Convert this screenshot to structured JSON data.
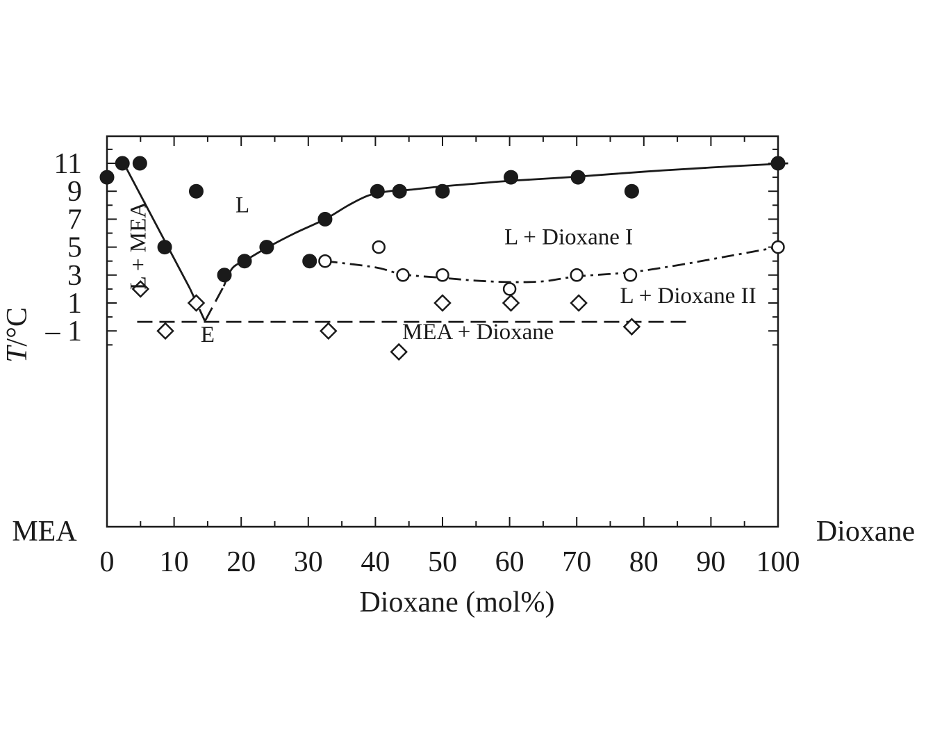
{
  "chart_data": {
    "type": "scatter",
    "title": "",
    "xlabel": "Dioxane (mol%)",
    "ylabel_italic": "T",
    "ylabel_rest": "/°C",
    "xlim": [
      0,
      100
    ],
    "ylim": [
      -3,
      12.8
    ],
    "x_ticks": [
      0,
      10,
      20,
      30,
      40,
      50,
      60,
      70,
      80,
      90,
      100
    ],
    "y_ticks": [
      11,
      9,
      7,
      5,
      3,
      1,
      -1
    ],
    "y_tick_labels": [
      "11",
      "9",
      "7",
      "5",
      "3",
      "1",
      "– 1"
    ],
    "left_end_label": "MEA",
    "right_end_label": "Dioxane",
    "grid": false,
    "series": [
      {
        "marker": "filled-circle",
        "points": [
          [
            0,
            10
          ],
          [
            2.3,
            11
          ],
          [
            4.9,
            11
          ],
          [
            8.6,
            5
          ],
          [
            13.3,
            9
          ],
          [
            17.5,
            3
          ],
          [
            20.5,
            4
          ],
          [
            23.8,
            5
          ],
          [
            30.2,
            4
          ],
          [
            32.5,
            7
          ],
          [
            40.3,
            9
          ],
          [
            43.6,
            9
          ],
          [
            50,
            9
          ],
          [
            60.2,
            10
          ],
          [
            70.2,
            10
          ],
          [
            78.2,
            9
          ],
          [
            100,
            11
          ]
        ]
      },
      {
        "marker": "open-circle",
        "points": [
          [
            32.5,
            4
          ],
          [
            40.5,
            5
          ],
          [
            44.1,
            3
          ],
          [
            50,
            3
          ],
          [
            60,
            2
          ],
          [
            70,
            3
          ],
          [
            78,
            3
          ],
          [
            100,
            5
          ]
        ]
      },
      {
        "marker": "open-diamond",
        "points": [
          [
            5,
            2
          ],
          [
            8.7,
            -1
          ],
          [
            13.3,
            1
          ],
          [
            33,
            -1
          ],
          [
            43.5,
            -2.5
          ],
          [
            50,
            1
          ],
          [
            60.2,
            1
          ],
          [
            70.3,
            1
          ],
          [
            78.2,
            -0.7
          ]
        ]
      }
    ],
    "curves": [
      {
        "style": "solid",
        "points": [
          [
            2.5,
            11
          ],
          [
            12.4,
            2
          ]
        ]
      },
      {
        "style": "dashed",
        "points": [
          [
            12.4,
            2
          ],
          [
            14.6,
            -0.3
          ]
        ]
      },
      {
        "style": "dashed",
        "points": [
          [
            14.6,
            -0.3
          ],
          [
            17.4,
            2.2
          ]
        ]
      },
      {
        "style": "solid",
        "points": [
          [
            17.4,
            2.2
          ],
          [
            18.7,
            3.5
          ],
          [
            20.8,
            4.1
          ],
          [
            24,
            5
          ],
          [
            28,
            6
          ],
          [
            32.5,
            7
          ],
          [
            36,
            8
          ],
          [
            39,
            8.7
          ],
          [
            42,
            9
          ],
          [
            45,
            9.1
          ],
          [
            50,
            9.35
          ],
          [
            55,
            9.55
          ],
          [
            60.2,
            9.75
          ],
          [
            70.2,
            10.05
          ],
          [
            80,
            10.4
          ],
          [
            90,
            10.7
          ],
          [
            101.5,
            11
          ]
        ]
      },
      {
        "style": "dashdot",
        "points": [
          [
            32.5,
            4
          ],
          [
            40,
            3.55
          ],
          [
            44.1,
            3.05
          ],
          [
            50,
            2.8
          ],
          [
            55,
            2.6
          ],
          [
            60,
            2.5
          ],
          [
            65,
            2.55
          ],
          [
            70,
            2.9
          ],
          [
            78,
            3.2
          ],
          [
            85,
            3.7
          ],
          [
            92,
            4.3
          ],
          [
            100,
            5
          ]
        ]
      },
      {
        "style": "dashed",
        "points": [
          [
            4.5,
            -0.35
          ],
          [
            86.5,
            -0.35
          ]
        ]
      }
    ],
    "region_labels": [
      {
        "text": "L",
        "x": 20.2,
        "y": 8,
        "rotate": false
      },
      {
        "text": "L + MEA",
        "x": 4.7,
        "y": 5.1,
        "rotate": true
      },
      {
        "text": "L + Dioxane I",
        "x": 68.8,
        "y": 5.7,
        "rotate": false
      },
      {
        "text": "L + Dioxane II",
        "x": 86.6,
        "y": 1.5,
        "rotate": false
      },
      {
        "text": "E",
        "x": 15,
        "y": -1.3,
        "rotate": false
      },
      {
        "text": "MEA + Dioxane",
        "x": 55.3,
        "y": -1.1,
        "rotate": false
      }
    ]
  }
}
